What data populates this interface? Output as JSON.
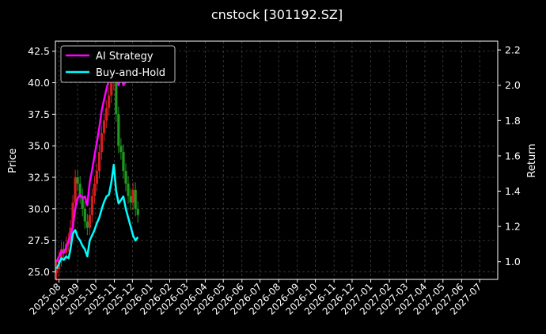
{
  "chart_data": {
    "type": "line",
    "title": "cnstock [301192.SZ]",
    "ylabel_left": "Price",
    "ylabel_right": "Return",
    "ylim_left": [
      24.4,
      43.3
    ],
    "ylim_right": [
      0.9,
      2.25
    ],
    "xlim": [
      "2025-07-26",
      "2027-07-31"
    ],
    "left_ticks": [
      "25.0",
      "27.5",
      "30.0",
      "32.5",
      "35.0",
      "37.5",
      "40.0",
      "42.5"
    ],
    "right_ticks": [
      "1.0",
      "1.2",
      "1.4",
      "1.6",
      "1.8",
      "2.0",
      "2.2"
    ],
    "x_ticks": [
      "2025-08",
      "2025-09",
      "2025-10",
      "2025-11",
      "2025-12",
      "2026-01",
      "2026-02",
      "2026-03",
      "2026-04",
      "2026-05",
      "2026-06",
      "2026-07",
      "2026-08",
      "2026-09",
      "2026-10",
      "2026-11",
      "2026-12",
      "2027-01",
      "2027-02",
      "2027-03",
      "2027-04",
      "2027-05",
      "2027-06",
      "2027-07"
    ],
    "grid": true,
    "legend_position": "top-left",
    "series": [
      {
        "name": "AI Strategy",
        "axis": "right",
        "color": "#ff00ff",
        "x": [
          "2025-07-28",
          "2025-08-01",
          "2025-08-05",
          "2025-08-09",
          "2025-08-13",
          "2025-08-17",
          "2025-08-20",
          "2025-08-24",
          "2025-08-28",
          "2025-09-01",
          "2025-09-05",
          "2025-09-09",
          "2025-09-13",
          "2025-09-17",
          "2025-09-21",
          "2025-09-25",
          "2025-09-29",
          "2025-10-03",
          "2025-10-07",
          "2025-10-11",
          "2025-10-15",
          "2025-10-19",
          "2025-10-23",
          "2025-10-27",
          "2025-10-31",
          "2025-11-04",
          "2025-11-08",
          "2025-11-12",
          "2025-11-16",
          "2025-11-20",
          "2025-11-24",
          "2025-11-28",
          "2025-12-02",
          "2025-12-06",
          "2025-12-10"
        ],
        "values": [
          1.0,
          1.03,
          1.06,
          1.05,
          1.08,
          1.12,
          1.15,
          1.2,
          1.3,
          1.36,
          1.38,
          1.36,
          1.37,
          1.32,
          1.45,
          1.52,
          1.6,
          1.68,
          1.76,
          1.86,
          1.92,
          1.98,
          2.03,
          2.08,
          2.11,
          2.05,
          2.0,
          2.05,
          2.0,
          2.02,
          2.06,
          2.11,
          2.12,
          2.09,
          2.1
        ]
      },
      {
        "name": "Buy-and-Hold",
        "axis": "right",
        "color": "#00ffff",
        "x": [
          "2025-07-28",
          "2025-08-01",
          "2025-08-05",
          "2025-08-09",
          "2025-08-13",
          "2025-08-17",
          "2025-08-20",
          "2025-08-24",
          "2025-08-28",
          "2025-09-01",
          "2025-09-05",
          "2025-09-09",
          "2025-09-13",
          "2025-09-17",
          "2025-09-21",
          "2025-09-25",
          "2025-09-29",
          "2025-10-03",
          "2025-10-07",
          "2025-10-11",
          "2025-10-15",
          "2025-10-19",
          "2025-10-23",
          "2025-10-27",
          "2025-10-31",
          "2025-11-04",
          "2025-11-08",
          "2025-11-12",
          "2025-11-16",
          "2025-11-20",
          "2025-11-24",
          "2025-11-28",
          "2025-12-02",
          "2025-12-06",
          "2025-12-10"
        ],
        "values": [
          0.96,
          0.99,
          1.02,
          1.01,
          1.03,
          1.02,
          1.07,
          1.16,
          1.18,
          1.14,
          1.12,
          1.09,
          1.07,
          1.03,
          1.12,
          1.15,
          1.18,
          1.22,
          1.25,
          1.3,
          1.34,
          1.37,
          1.38,
          1.45,
          1.55,
          1.4,
          1.33,
          1.35,
          1.37,
          1.3,
          1.25,
          1.2,
          1.15,
          1.12,
          1.14
        ]
      },
      {
        "name": "",
        "type": "candlestick",
        "axis": "left",
        "x": [
          "2025-07-28",
          "2025-08-01",
          "2025-08-05",
          "2025-08-09",
          "2025-08-13",
          "2025-08-17",
          "2025-08-20",
          "2025-08-24",
          "2025-08-28",
          "2025-09-01",
          "2025-09-05",
          "2025-09-09",
          "2025-09-13",
          "2025-09-17",
          "2025-09-21",
          "2025-09-25",
          "2025-09-29",
          "2025-10-03",
          "2025-10-07",
          "2025-10-11",
          "2025-10-15",
          "2025-10-19",
          "2025-10-23",
          "2025-10-27",
          "2025-10-31",
          "2025-11-04",
          "2025-11-08",
          "2025-11-12",
          "2025-11-16",
          "2025-11-20",
          "2025-11-24",
          "2025-11-28",
          "2025-12-02",
          "2025-12-06",
          "2025-12-10"
        ],
        "values": [
          25.2,
          26.0,
          26.8,
          26.5,
          27.2,
          27.5,
          28.5,
          30.5,
          32.5,
          32.0,
          31.0,
          30.0,
          29.0,
          28.5,
          29.5,
          31.0,
          32.0,
          33.0,
          34.5,
          36.0,
          37.0,
          38.0,
          39.0,
          40.0,
          41.5,
          37.5,
          35.0,
          34.5,
          33.0,
          32.0,
          31.0,
          30.5,
          31.5,
          30.0,
          29.5
        ]
      }
    ]
  }
}
